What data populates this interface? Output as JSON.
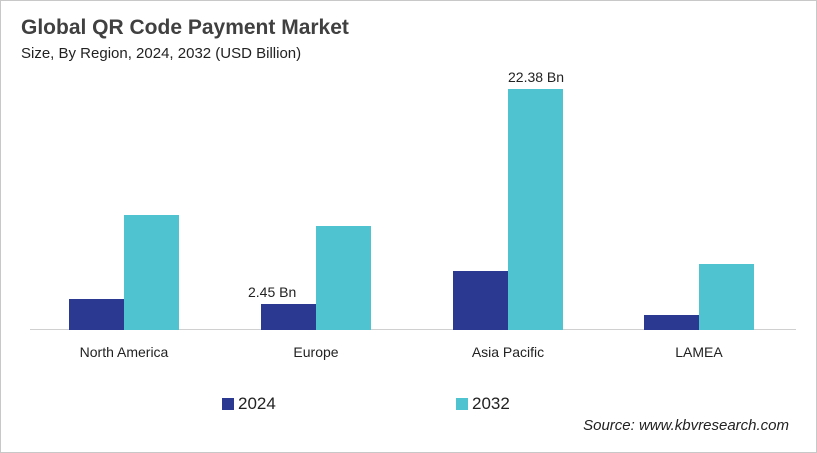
{
  "chart_data": {
    "type": "bar",
    "title": "Global QR Code Payment Market",
    "subtitle": "Size, By Region, 2024, 2032 (USD Billion)",
    "categories": [
      "North America",
      "Europe",
      "Asia Pacific",
      "LAMEA"
    ],
    "series": [
      {
        "name": "2024",
        "color": "#2b3990",
        "values": [
          2.9,
          2.45,
          5.5,
          1.4
        ]
      },
      {
        "name": "2032",
        "color": "#4fc3cf",
        "values": [
          10.7,
          9.7,
          22.38,
          6.1
        ]
      }
    ],
    "annotations": [
      {
        "category": "Europe",
        "series": "2024",
        "text": "2.45 Bn"
      },
      {
        "category": "Asia Pacific",
        "series": "2032",
        "text": "22.38 Bn"
      }
    ],
    "xlabel": "",
    "ylabel": "",
    "ylim": [
      0,
      24
    ],
    "grid": false,
    "legend_position": "bottom",
    "source": "Source: www.kbvresearch.com"
  }
}
